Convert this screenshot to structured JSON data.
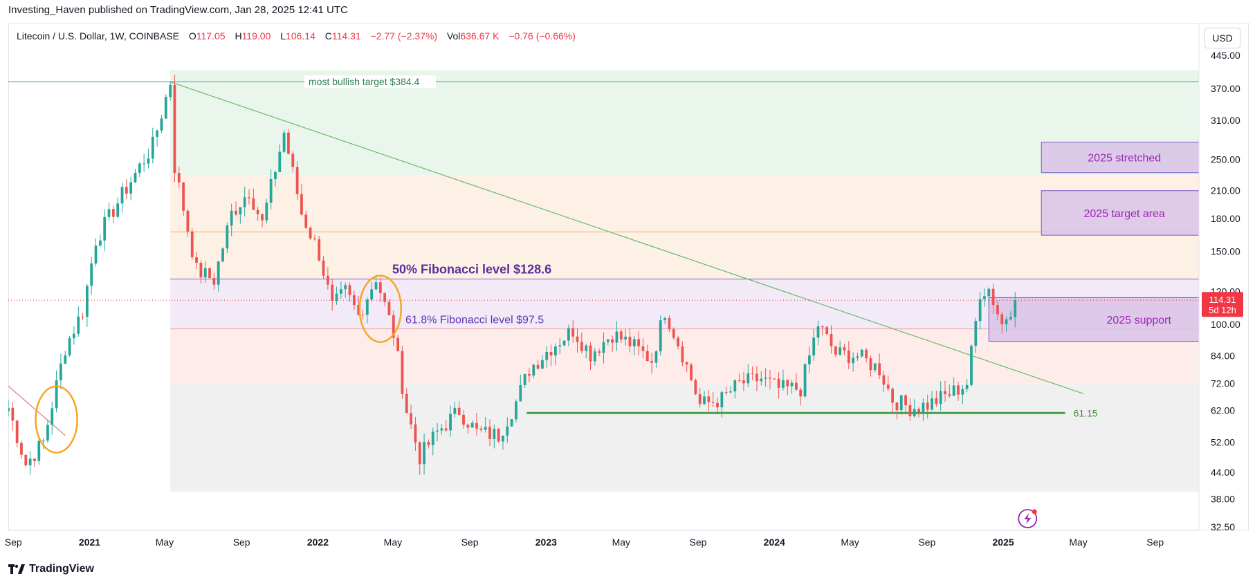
{
  "header": {
    "published_line": "Investing_Haven published on TradingView.com, Jan 28, 2025 12:41 UTC"
  },
  "legend": {
    "symbol": "Litecoin / U.S. Dollar, 1W, COINBASE",
    "open_label": "O",
    "open": "117.05",
    "high_label": "H",
    "high": "119.00",
    "low_label": "L",
    "low": "106.14",
    "close_label": "C",
    "close": "114.31",
    "change": "−2.77 (−2.37%)",
    "vol_label": "Vol",
    "vol": "636.67 K",
    "vol_change": "−0.76 (−0.66%)"
  },
  "price_axis": {
    "currency_button": "USD",
    "current_price": "114.31",
    "countdown": "5d 12h"
  },
  "footer": {
    "brand": "TradingView"
  },
  "colors": {
    "up": "#26a69a",
    "down": "#ef5350",
    "annotation_purple": "#5b2c9c",
    "zone_purple": "#d9c3e8",
    "support_green": "#4caf50",
    "circle_orange": "#f5a623"
  },
  "chart_data": {
    "type": "candlestick",
    "scale": "log",
    "ylim": [
      32.5,
      445
    ],
    "y_ticks": [
      445,
      370,
      310,
      250,
      210,
      180,
      150,
      120,
      100,
      84,
      72,
      62,
      52,
      44,
      38,
      32.5
    ],
    "y_tick_labels": [
      "445.00",
      "370.00",
      "310.00",
      "250.00",
      "210.00",
      "180.00",
      "150.00",
      "120.00",
      "100.00",
      "84.00",
      "72.00",
      "62.00",
      "52.00",
      "44.00",
      "38.00",
      "32.50"
    ],
    "x_range": [
      "2020-08-24",
      "2025-11-10"
    ],
    "x_ticks": [
      {
        "date": "2020-09-01",
        "label": "Sep",
        "bold": false
      },
      {
        "date": "2021-01-01",
        "label": "2021",
        "bold": true
      },
      {
        "date": "2021-05-01",
        "label": "May",
        "bold": false
      },
      {
        "date": "2021-09-01",
        "label": "Sep",
        "bold": false
      },
      {
        "date": "2022-01-01",
        "label": "2022",
        "bold": true
      },
      {
        "date": "2022-05-01",
        "label": "May",
        "bold": false
      },
      {
        "date": "2022-09-01",
        "label": "Sep",
        "bold": false
      },
      {
        "date": "2023-01-01",
        "label": "2023",
        "bold": true
      },
      {
        "date": "2023-05-01",
        "label": "May",
        "bold": false
      },
      {
        "date": "2023-09-01",
        "label": "Sep",
        "bold": false
      },
      {
        "date": "2024-01-01",
        "label": "2024",
        "bold": true
      },
      {
        "date": "2024-05-01",
        "label": "May",
        "bold": false
      },
      {
        "date": "2024-09-01",
        "label": "Sep",
        "bold": false
      },
      {
        "date": "2025-01-01",
        "label": "2025",
        "bold": true
      },
      {
        "date": "2025-05-01",
        "label": "May",
        "bold": false
      },
      {
        "date": "2025-09-01",
        "label": "Sep",
        "bold": false
      }
    ],
    "candle_interval": "1W",
    "price_path": [
      [
        "2020-08-24",
        63
      ],
      [
        "2020-09-21",
        46
      ],
      [
        "2020-10-19",
        52
      ],
      [
        "2020-11-23",
        88
      ],
      [
        "2020-12-21",
        108
      ],
      [
        "2021-01-11",
        160
      ],
      [
        "2021-02-22",
        205
      ],
      [
        "2021-04-12",
        270
      ],
      [
        "2021-05-10",
        384
      ],
      [
        "2021-05-17",
        240
      ],
      [
        "2021-06-21",
        135
      ],
      [
        "2021-07-19",
        128
      ],
      [
        "2021-08-16",
        185
      ],
      [
        "2021-09-13",
        210
      ],
      [
        "2021-10-04",
        175
      ],
      [
        "2021-11-08",
        290
      ],
      [
        "2021-12-06",
        185
      ],
      [
        "2022-01-03",
        148
      ],
      [
        "2022-01-24",
        110
      ],
      [
        "2022-02-14",
        120
      ],
      [
        "2022-03-07",
        105
      ],
      [
        "2022-04-04",
        130
      ],
      [
        "2022-05-02",
        95
      ],
      [
        "2022-05-23",
        62
      ],
      [
        "2022-06-13",
        48
      ],
      [
        "2022-07-11",
        55
      ],
      [
        "2022-08-15",
        62
      ],
      [
        "2022-09-12",
        55
      ],
      [
        "2022-10-17",
        54
      ],
      [
        "2022-11-14",
        65
      ],
      [
        "2022-12-05",
        78
      ],
      [
        "2023-01-09",
        88
      ],
      [
        "2023-02-13",
        97
      ],
      [
        "2023-03-13",
        85
      ],
      [
        "2023-04-17",
        95
      ],
      [
        "2023-05-15",
        90
      ],
      [
        "2023-06-19",
        82
      ],
      [
        "2023-07-10",
        108
      ],
      [
        "2023-08-07",
        85
      ],
      [
        "2023-09-04",
        64
      ],
      [
        "2023-10-09",
        66
      ],
      [
        "2023-11-06",
        72
      ],
      [
        "2023-12-11",
        74
      ],
      [
        "2024-01-08",
        70
      ],
      [
        "2024-02-12",
        70
      ],
      [
        "2024-03-11",
        100
      ],
      [
        "2024-04-08",
        85
      ],
      [
        "2024-05-13",
        84
      ],
      [
        "2024-06-17",
        78
      ],
      [
        "2024-07-08",
        66
      ],
      [
        "2024-08-05",
        63
      ],
      [
        "2024-09-02",
        64
      ],
      [
        "2024-10-07",
        68
      ],
      [
        "2024-11-04",
        72
      ],
      [
        "2024-11-25",
        120
      ],
      [
        "2024-12-09",
        122
      ],
      [
        "2024-12-30",
        100
      ],
      [
        "2025-01-20",
        114.31
      ]
    ],
    "horizontal_levels": [
      {
        "price": 384.4,
        "label": "most bullish target $384.4",
        "color": "#26a69a"
      },
      {
        "price": 167,
        "label": "",
        "color": "#f0a868"
      },
      {
        "price": 128.6,
        "label": "50% Fibonacci level $128.6",
        "color": "#7e57c2"
      },
      {
        "price": 97.5,
        "label": "61.8% Fibonacci level $97.5",
        "color": "#ef9a9a"
      },
      {
        "price": 61.15,
        "label": "61.15",
        "color": "#43a047"
      }
    ],
    "fib_zones": [
      {
        "from": 384.4,
        "to": 410,
        "color": "#e8f5e9"
      },
      {
        "from": 229,
        "to": 384.4,
        "color": "#eaf6ec"
      },
      {
        "from": 128.6,
        "to": 229,
        "color": "#fdf1e6"
      },
      {
        "from": 97.5,
        "to": 128.6,
        "color": "#f3eaf8"
      },
      {
        "from": 72,
        "to": 97.5,
        "color": "#fdecea"
      },
      {
        "from": 39.5,
        "to": 72,
        "color": "#f0f0f0"
      }
    ],
    "target_boxes": [
      {
        "label": "2025 stretched",
        "from": 232,
        "to": 275,
        "start": "2025-03-03",
        "end": "2025-11-10"
      },
      {
        "label": "2025 target area",
        "from": 164,
        "to": 210,
        "start": "2025-03-03",
        "end": "2025-11-10"
      },
      {
        "label": "2025 support",
        "from": 91,
        "to": 116,
        "start": "2024-12-09",
        "end": "2025-11-10"
      }
    ],
    "trendline": {
      "from": [
        "2021-05-10",
        384
      ],
      "to": [
        "2025-05-10",
        68
      ]
    },
    "short_trendline": {
      "from": [
        "2020-08-24",
        71
      ],
      "to": [
        "2020-11-23",
        54
      ]
    },
    "highlight_circles": [
      {
        "center": [
          "2020-11-09",
          59
        ]
      },
      {
        "center": [
          "2022-04-11",
          109
        ]
      }
    ]
  }
}
